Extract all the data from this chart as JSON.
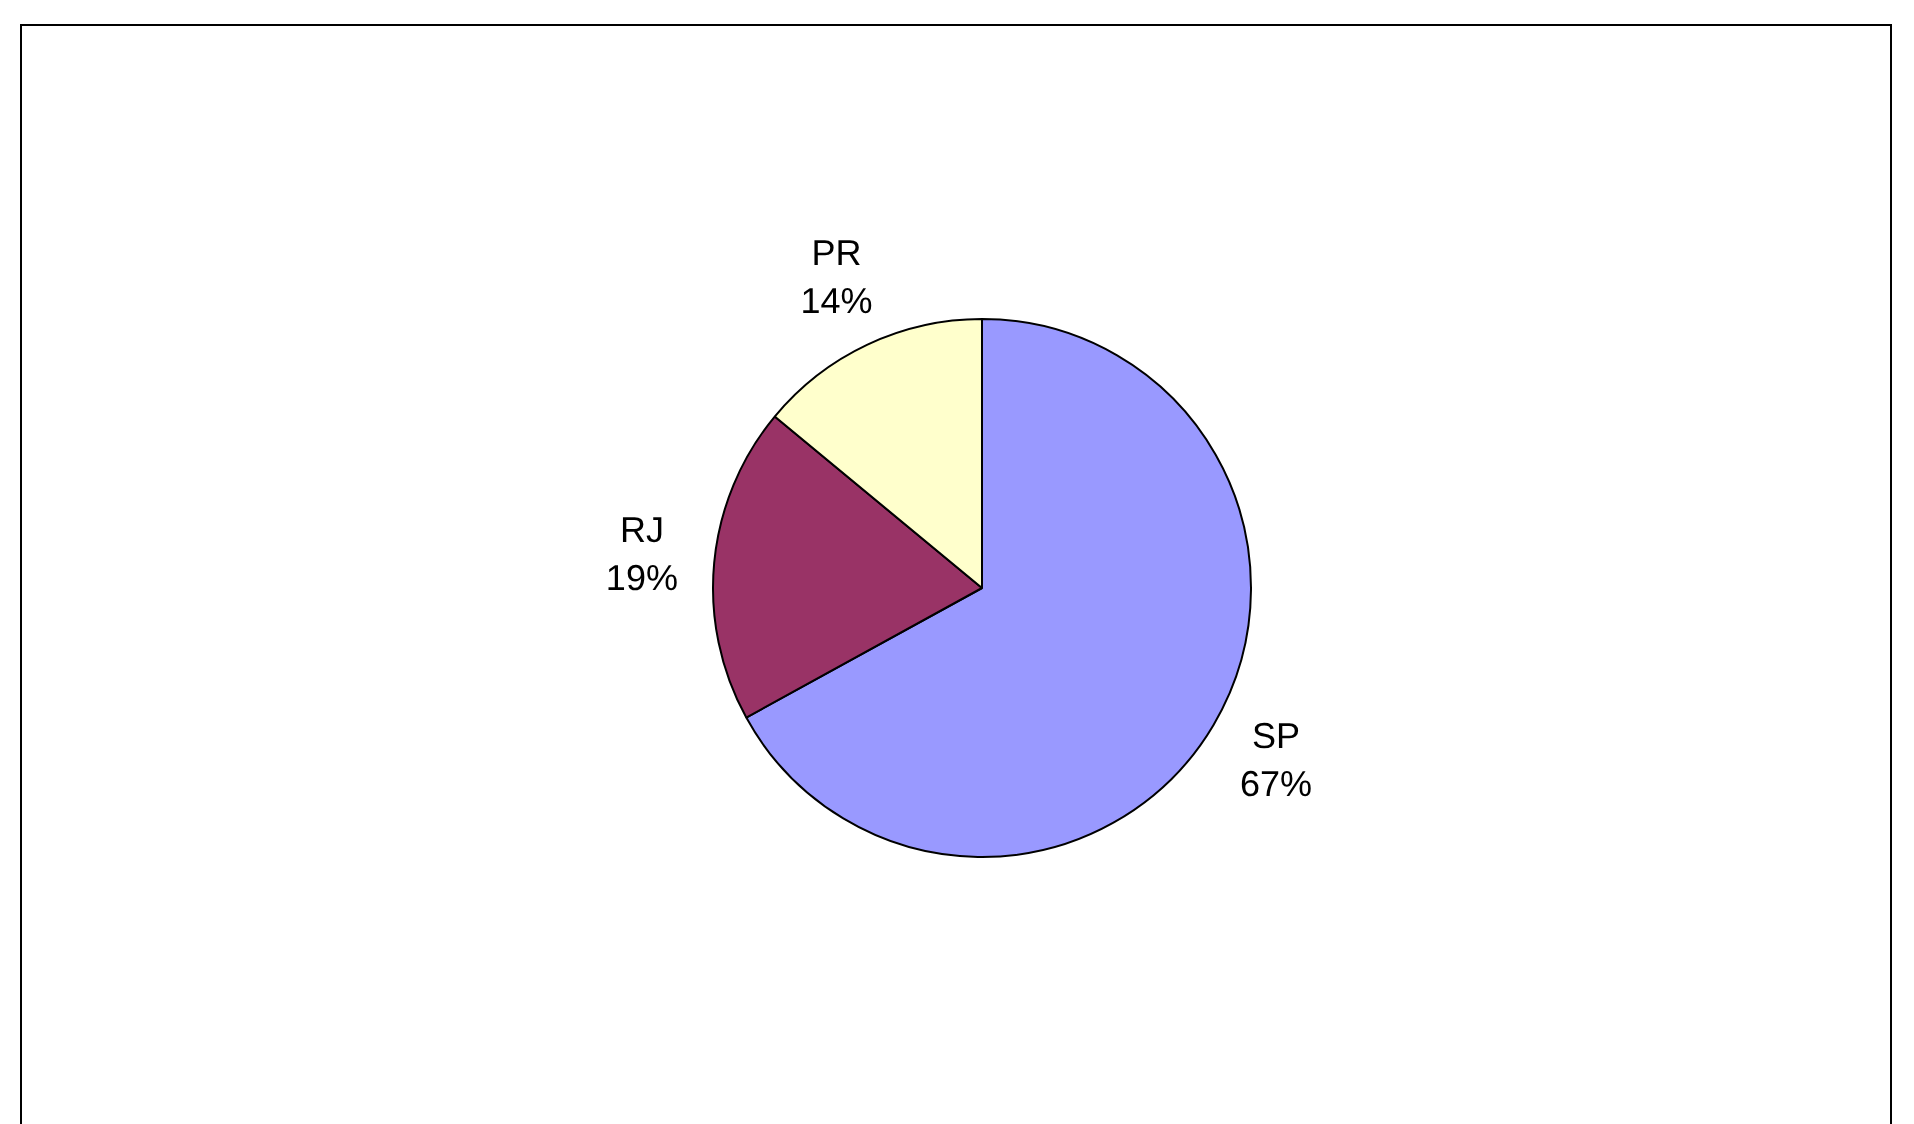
{
  "chart_data": {
    "type": "pie",
    "categories": [
      "SP",
      "RJ",
      "PR"
    ],
    "values": [
      67,
      19,
      14
    ],
    "colors": [
      "#9999ff",
      "#993366",
      "#ffffcc"
    ],
    "value_labels": [
      "67%",
      "19%",
      "14%"
    ],
    "legend": false
  }
}
